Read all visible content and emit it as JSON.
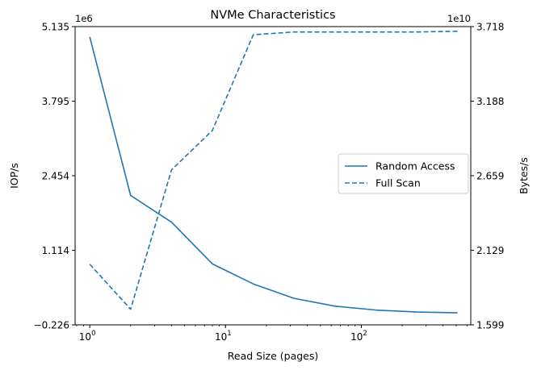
{
  "chart_data": {
    "type": "line",
    "title": "NVMe Characteristics",
    "xlabel": "Read Size (pages)",
    "ylabel_left": "IOP/s",
    "ylabel_right": "Bytes/s",
    "x_scale": "log",
    "xlim": [
      0.78,
      640
    ],
    "x_ticks": [
      {
        "value": 1,
        "base": "10",
        "exp": "0"
      },
      {
        "value": 10,
        "base": "10",
        "exp": "1"
      },
      {
        "value": 100,
        "base": "10",
        "exp": "2"
      }
    ],
    "left_axis": {
      "ylim": [
        -0.226,
        5.135
      ],
      "ticks": [
        "5.135",
        "3.795",
        "2.454",
        "1.114",
        "−0.226"
      ],
      "tick_values": [
        5.135,
        3.795,
        2.454,
        1.114,
        -0.226
      ],
      "offset_label": "1e6"
    },
    "right_axis": {
      "ylim": [
        1.599,
        3.718
      ],
      "ticks": [
        "3.718",
        "3.188",
        "2.659",
        "2.129",
        "1.599"
      ],
      "tick_values": [
        3.718,
        3.188,
        2.659,
        2.129,
        1.599
      ],
      "offset_label": "1e10"
    },
    "series": [
      {
        "name": "Random Access",
        "axis": "left",
        "style": "solid",
        "x": [
          1,
          2,
          4,
          8,
          16,
          32,
          64,
          128,
          256,
          512
        ],
        "y": [
          4.95,
          2.1,
          1.62,
          0.87,
          0.51,
          0.25,
          0.11,
          0.04,
          0.005,
          -0.01
        ]
      },
      {
        "name": "Full Scan",
        "axis": "right",
        "style": "dashed",
        "x": [
          1,
          2,
          4,
          8,
          16,
          32,
          64,
          128,
          256,
          512
        ],
        "y": [
          2.03,
          1.71,
          2.7,
          2.98,
          3.66,
          3.68,
          3.68,
          3.68,
          3.68,
          3.685
        ]
      }
    ],
    "line_color": "#1f77b4",
    "legend_position": "center-right"
  }
}
